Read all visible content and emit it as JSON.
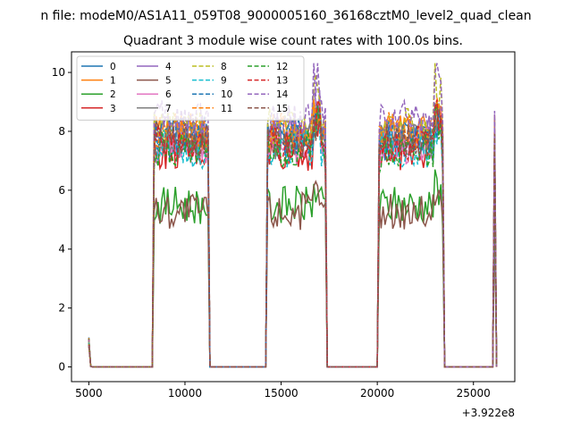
{
  "chart_data": {
    "type": "line",
    "suptitle": "n file: modeM0/AS1A11_059T08_9000005160_36168cztM0_level2_quad_clean",
    "title": "Quadrant 3 module wise count rates with 100.0s bins.",
    "xlabel": "",
    "ylabel": "",
    "x_offset_label": "+3.922e8",
    "xlim": [
      4100,
      27150
    ],
    "ylim": [
      -0.5,
      10.7
    ],
    "xticks": [
      5000,
      10000,
      15000,
      20000,
      25000
    ],
    "yticks": [
      0,
      2,
      4,
      6,
      8,
      10
    ],
    "grid": false,
    "legend": {
      "placement": "top-left",
      "ncol": 4
    },
    "observation_windows": [
      [
        8300,
        11300
      ],
      [
        14200,
        17400
      ],
      [
        20000,
        23500
      ],
      [
        26000,
        26200
      ]
    ],
    "series": [
      {
        "name": "0",
        "color": "#1f77b4",
        "style": "solid",
        "level": 7.6,
        "peak": 8.6
      },
      {
        "name": "1",
        "color": "#ff7f0e",
        "style": "solid",
        "level": 7.9,
        "peak": 8.9
      },
      {
        "name": "2",
        "color": "#2ca02c",
        "style": "solid",
        "level": 5.5,
        "peak": 6.3
      },
      {
        "name": "3",
        "color": "#d62728",
        "style": "solid",
        "level": 7.3,
        "peak": 8.4
      },
      {
        "name": "4",
        "color": "#9467bd",
        "style": "solid",
        "level": 8.0,
        "peak": 9.0
      },
      {
        "name": "5",
        "color": "#8c564b",
        "style": "solid",
        "level": 5.3,
        "peak": 6.0
      },
      {
        "name": "6",
        "color": "#e377c2",
        "style": "solid",
        "level": 7.5,
        "peak": 8.7
      },
      {
        "name": "7",
        "color": "#7f7f7f",
        "style": "solid",
        "level": 7.7,
        "peak": 8.6
      },
      {
        "name": "8",
        "color": "#bcbd22",
        "style": "dashed",
        "level": 8.2,
        "peak": 10.2
      },
      {
        "name": "9",
        "color": "#17becf",
        "style": "dashed",
        "level": 7.4,
        "peak": 8.5
      },
      {
        "name": "10",
        "color": "#1f77b4",
        "style": "dashed",
        "level": 7.8,
        "peak": 8.8
      },
      {
        "name": "11",
        "color": "#ff7f0e",
        "style": "dashed",
        "level": 8.0,
        "peak": 9.0
      },
      {
        "name": "12",
        "color": "#2ca02c",
        "style": "dashed",
        "level": 7.4,
        "peak": 8.4
      },
      {
        "name": "13",
        "color": "#d62728",
        "style": "dashed",
        "level": 7.6,
        "peak": 8.7
      },
      {
        "name": "14",
        "color": "#9467bd",
        "style": "dashed",
        "level": 8.4,
        "peak": 10.1
      },
      {
        "name": "15",
        "color": "#8c564b",
        "style": "dashed",
        "level": 7.7,
        "peak": 8.6
      }
    ]
  }
}
